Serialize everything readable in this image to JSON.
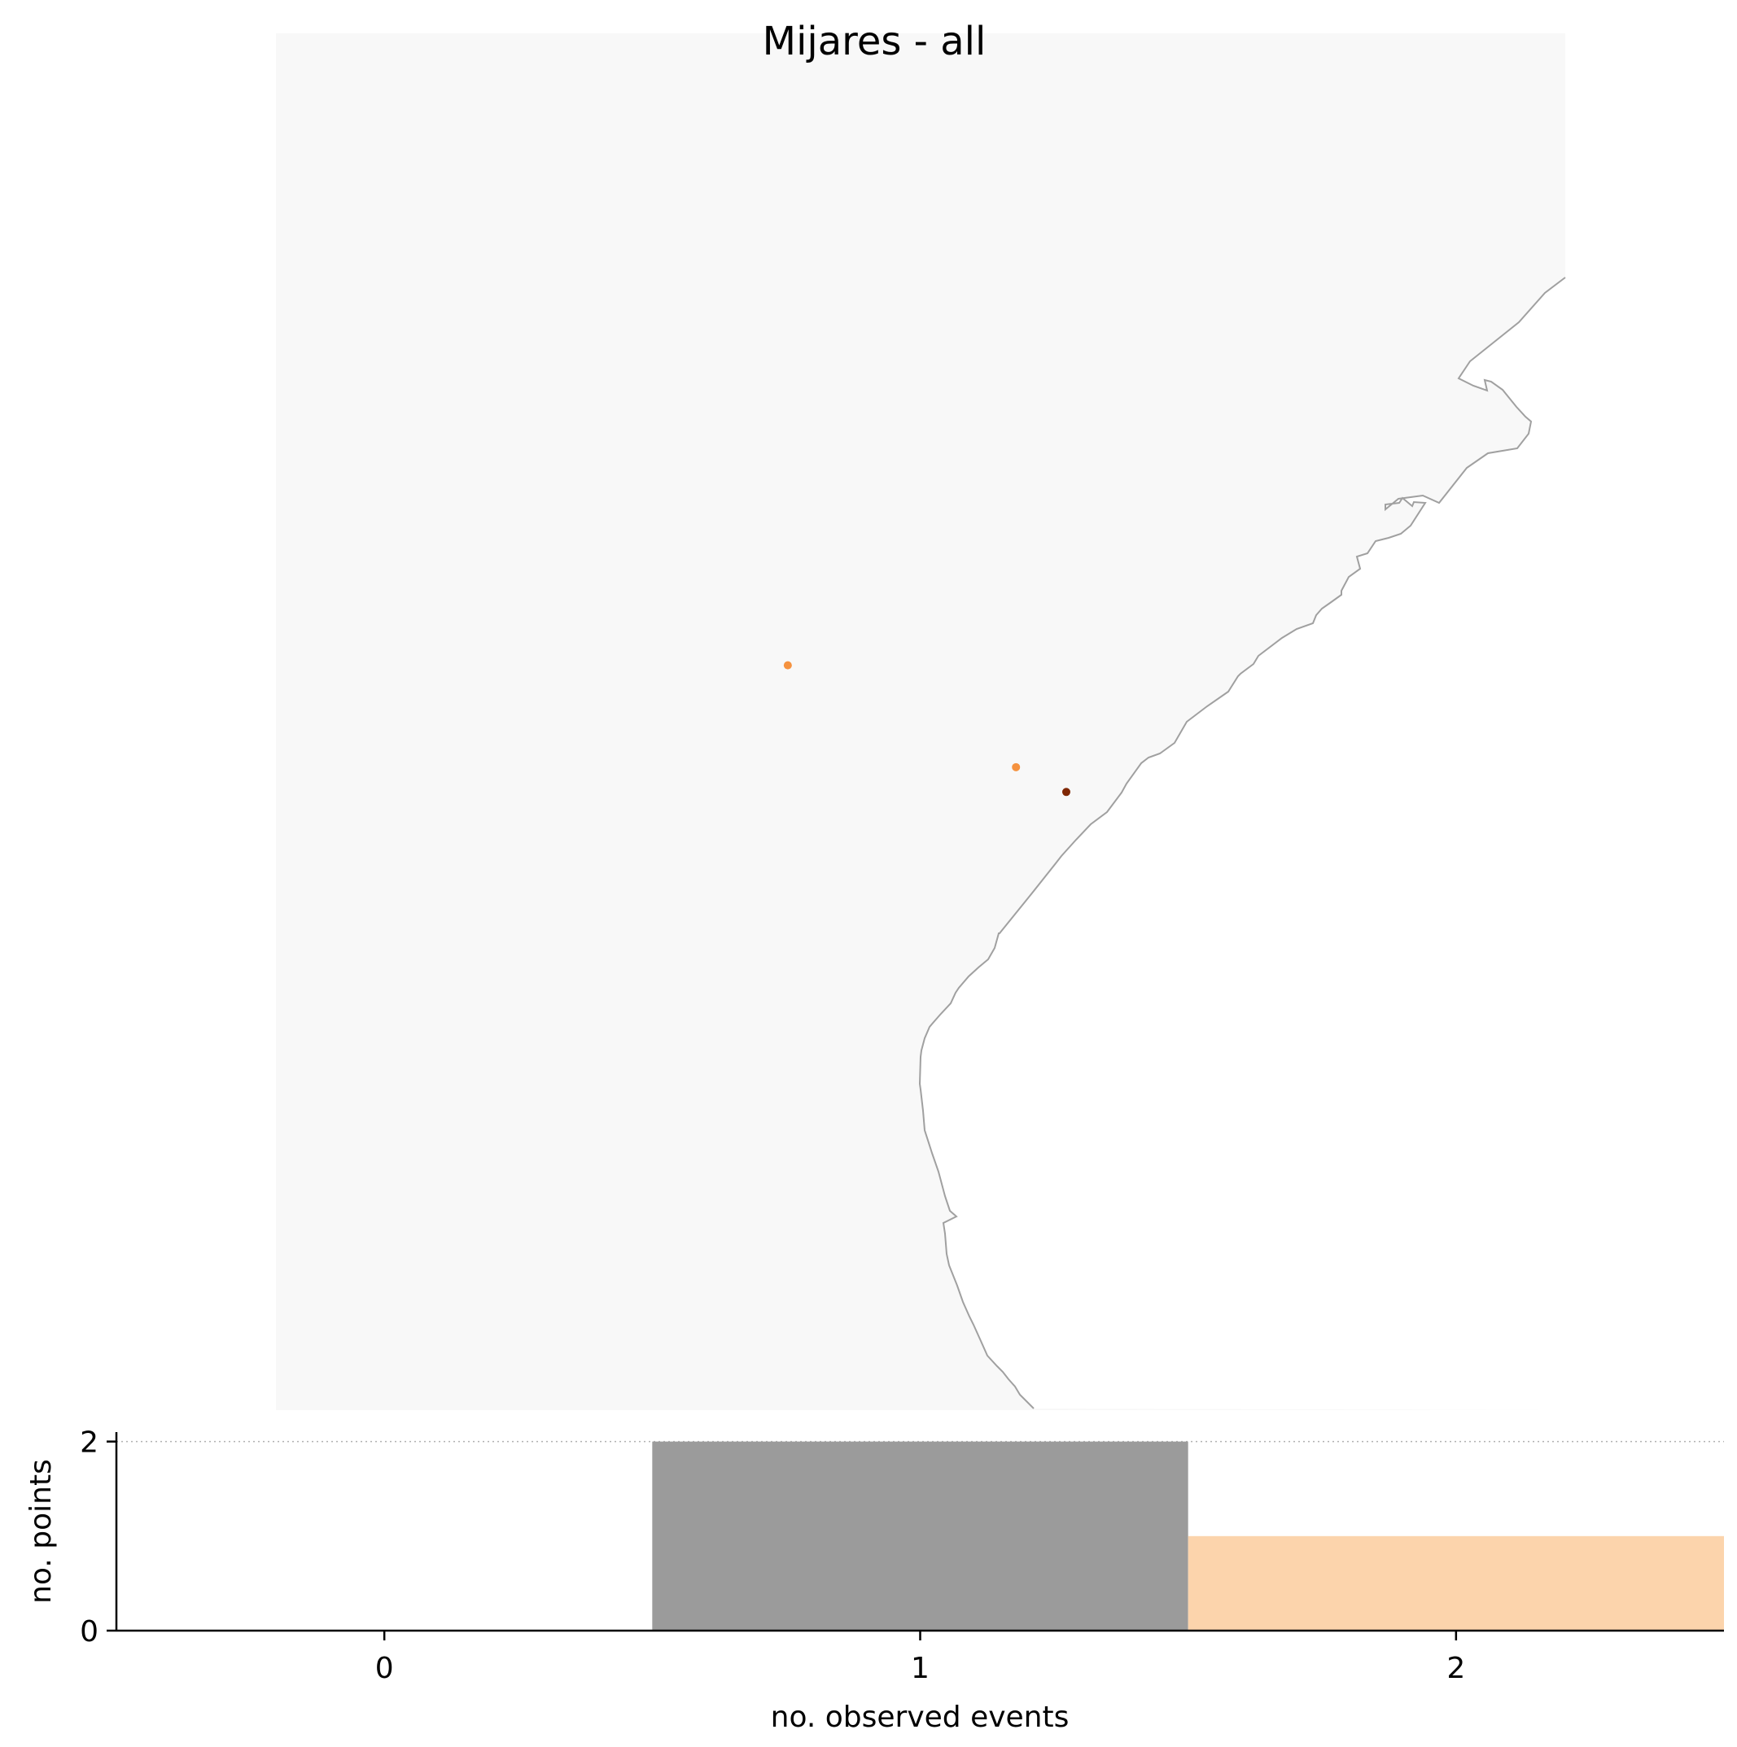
{
  "title": "Mijares - all",
  "colors": {
    "map_background": "#f8f8f8",
    "coastline": "#a0a0a0",
    "bar_gray": "#9b9b9b",
    "bar_orange": "#fcd4ac",
    "point_orange": "#f5923f",
    "point_dark": "#7f2704",
    "grid": "#b0b0b0",
    "axis": "#000000"
  },
  "chart_data": [
    {
      "type": "scatter",
      "title": "Mijares - all",
      "xlabel": "",
      "ylabel": "",
      "grid": false,
      "points": [
        {
          "x": 0.397,
          "y": 0.541,
          "color": "#f5923f"
        },
        {
          "x": 0.574,
          "y": 0.467,
          "color": "#f5923f"
        },
        {
          "x": 0.613,
          "y": 0.449,
          "color": "#7f2704"
        }
      ]
    },
    {
      "type": "bar",
      "categories": [
        "0",
        "1",
        "2"
      ],
      "values": [
        0,
        2,
        1
      ],
      "bar_colors": [
        "#ffffff",
        "#9b9b9b",
        "#fcd4ac"
      ],
      "xlabel": "no. observed events",
      "ylabel": "no. points",
      "xlim": [
        -0.5,
        2.5
      ],
      "ylim": [
        0,
        2.1
      ],
      "yticks": [
        0,
        2
      ],
      "yticklabels": [
        "0",
        "2"
      ],
      "hline_dotted": 2
    }
  ]
}
